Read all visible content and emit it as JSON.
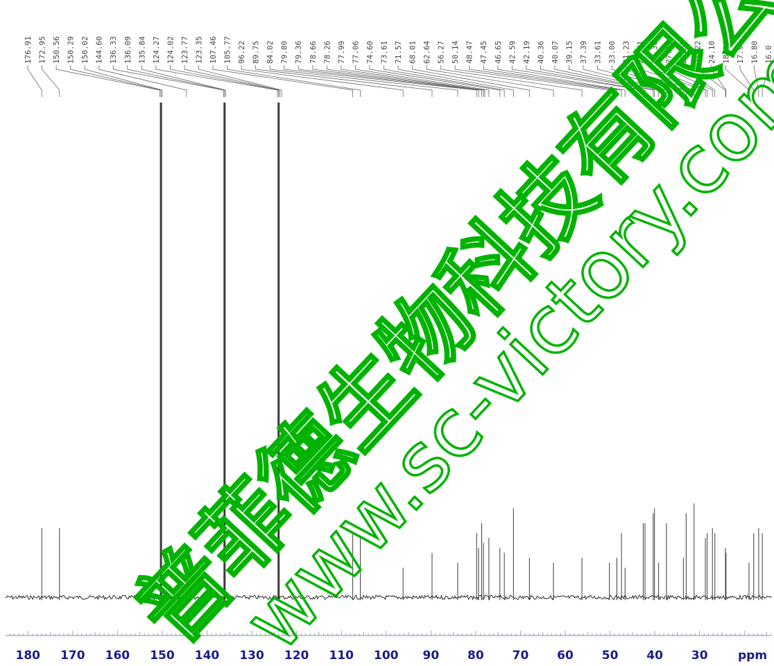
{
  "chart_data": {
    "type": "line",
    "title": "",
    "xlabel": "ppm",
    "ylabel": "",
    "xlim": [
      185,
      14
    ],
    "x_reversed": true,
    "xticks": [
      180,
      170,
      160,
      150,
      140,
      130,
      120,
      110,
      100,
      90,
      80,
      70,
      60,
      50,
      40,
      30
    ],
    "grid": false,
    "peak_labels": [
      "176.91",
      "172.95",
      "150.56",
      "150.29",
      "150.02",
      "144.60",
      "136.33",
      "136.09",
      "135.84",
      "124.27",
      "124.02",
      "123.77",
      "123.35",
      "107.46",
      "105.77",
      "96.22",
      "89.75",
      "84.02",
      "79.80",
      "79.36",
      "78.66",
      "78.26",
      "77.99",
      "77.06",
      "74.60",
      "73.61",
      "71.57",
      "68.01",
      "62.64",
      "56.27",
      "50.14",
      "48.47",
      "47.45",
      "46.65",
      "42.59",
      "42.19",
      "40.36",
      "40.07",
      "39.15",
      "37.39",
      "33.61",
      "33.00",
      "31.23",
      "28.71",
      "28.30",
      "27.13",
      "26.59",
      "24.22",
      "24.10",
      "18.96",
      "17.91",
      "16.80",
      "16.0"
    ],
    "peaks": [
      {
        "ppm": 176.91,
        "height": 0.14
      },
      {
        "ppm": 172.95,
        "height": 0.14
      },
      {
        "ppm": 150.29,
        "height": 1.0
      },
      {
        "ppm": 136.09,
        "height": 1.0
      },
      {
        "ppm": 124.02,
        "height": 1.0
      },
      {
        "ppm": 107.46,
        "height": 0.13
      },
      {
        "ppm": 105.77,
        "height": 0.12
      },
      {
        "ppm": 96.22,
        "height": 0.06
      },
      {
        "ppm": 89.75,
        "height": 0.09
      },
      {
        "ppm": 84.02,
        "height": 0.07
      },
      {
        "ppm": 79.8,
        "height": 0.13
      },
      {
        "ppm": 79.36,
        "height": 0.1
      },
      {
        "ppm": 78.66,
        "height": 0.15
      },
      {
        "ppm": 78.26,
        "height": 0.11
      },
      {
        "ppm": 77.06,
        "height": 0.12
      },
      {
        "ppm": 74.6,
        "height": 0.1
      },
      {
        "ppm": 73.61,
        "height": 0.09
      },
      {
        "ppm": 71.57,
        "height": 0.18
      },
      {
        "ppm": 68.01,
        "height": 0.08
      },
      {
        "ppm": 62.64,
        "height": 0.07
      },
      {
        "ppm": 56.27,
        "height": 0.08
      },
      {
        "ppm": 50.14,
        "height": 0.07
      },
      {
        "ppm": 48.47,
        "height": 0.08
      },
      {
        "ppm": 47.45,
        "height": 0.13
      },
      {
        "ppm": 46.65,
        "height": 0.06
      },
      {
        "ppm": 42.59,
        "height": 0.15
      },
      {
        "ppm": 42.19,
        "height": 0.15
      },
      {
        "ppm": 40.36,
        "height": 0.17
      },
      {
        "ppm": 40.07,
        "height": 0.18
      },
      {
        "ppm": 39.15,
        "height": 0.07
      },
      {
        "ppm": 37.39,
        "height": 0.15
      },
      {
        "ppm": 33.61,
        "height": 0.08
      },
      {
        "ppm": 33.0,
        "height": 0.17
      },
      {
        "ppm": 31.23,
        "height": 0.19
      },
      {
        "ppm": 28.71,
        "height": 0.12
      },
      {
        "ppm": 28.3,
        "height": 0.13
      },
      {
        "ppm": 27.13,
        "height": 0.14
      },
      {
        "ppm": 26.59,
        "height": 0.13
      },
      {
        "ppm": 24.22,
        "height": 0.1
      },
      {
        "ppm": 24.1,
        "height": 0.09
      },
      {
        "ppm": 18.96,
        "height": 0.07
      },
      {
        "ppm": 17.91,
        "height": 0.13
      },
      {
        "ppm": 16.8,
        "height": 0.14
      },
      {
        "ppm": 16.0,
        "height": 0.13
      }
    ]
  },
  "watermark": {
    "cn": "普菲德生物科技有限公司",
    "url": "www.sc-victory.com",
    "color": "#00b300"
  }
}
